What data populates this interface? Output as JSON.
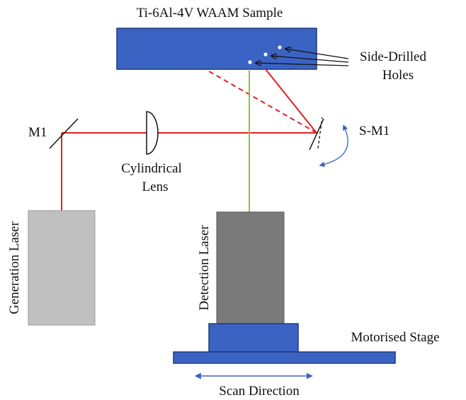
{
  "labels": {
    "sample": "Ti-6Al-4V WAAM Sample",
    "holes_line1": "Side-Drilled",
    "holes_line2": "Holes",
    "mirror1": "M1",
    "scan_mirror": "S-M1",
    "lens_line1": "Cylindrical",
    "lens_line2": "Lens",
    "generation_laser": "Generation Laser",
    "detection_laser": "Detection Laser",
    "stage": "Motorised Stage",
    "scan_direction": "Scan Direction"
  },
  "colors": {
    "sample_fill": "#3b63c4",
    "stage_fill": "#3b63c4",
    "outline": "#1f3a7a",
    "generation_beam": "#e02020",
    "detection_beam": "#8cc63f",
    "generation_laser_fill": "#c0c0c0",
    "detection_laser_fill": "#7a7a7a",
    "arrow": "#3b63c4"
  }
}
